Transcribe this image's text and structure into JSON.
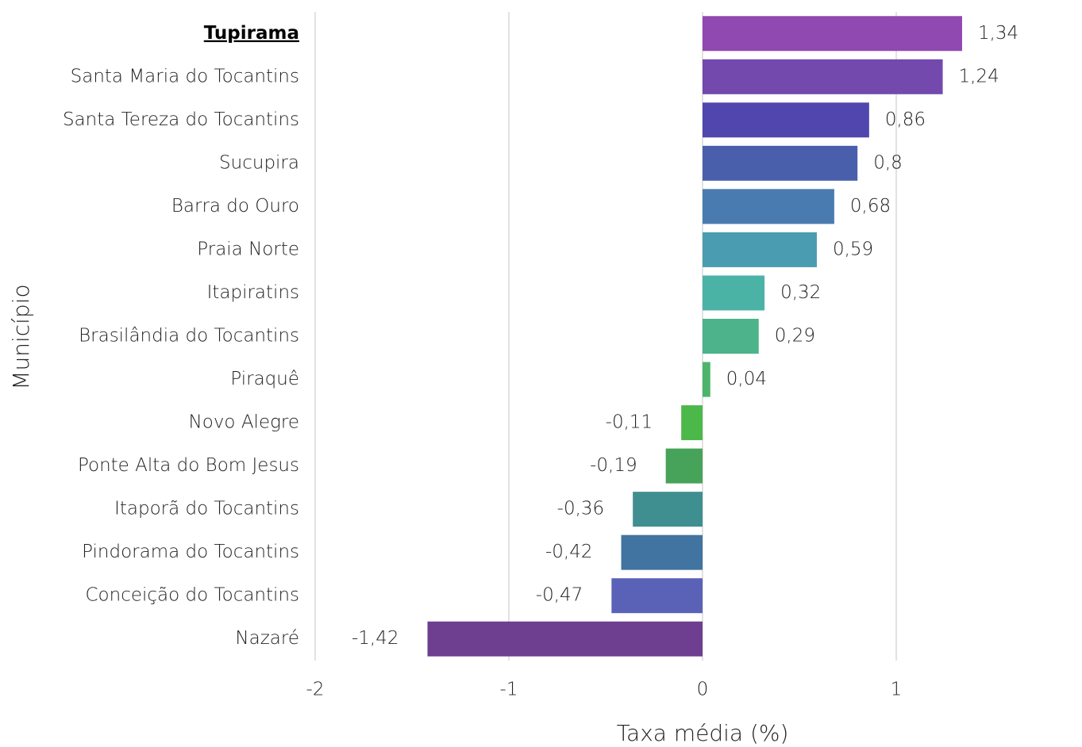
{
  "chart_data": {
    "type": "barh",
    "x_label": "Taxa média (%)",
    "y_label": "Município",
    "categories": [
      "Tupirama",
      "Santa Maria do Tocantins",
      "Santa Tereza do Tocantins",
      "Sucupira",
      "Barra do Ouro",
      "Praia Norte",
      "Itapiratins",
      "Brasilândia do Tocantins",
      "Piraquê",
      "Novo Alegre",
      "Ponte Alta do Bom Jesus",
      "Itaporã do Tocantins",
      "Pindorama do Tocantins",
      "Conceição do Tocantins",
      "Nazaré"
    ],
    "values": [
      1.34,
      1.24,
      0.86,
      0.8,
      0.68,
      0.59,
      0.32,
      0.29,
      0.04,
      -0.11,
      -0.19,
      -0.36,
      -0.42,
      -0.47,
      -1.42
    ],
    "value_labels": [
      "1,34",
      "1,24",
      "0,86",
      "0,8",
      "0,68",
      "0,59",
      "0,32",
      "0,29",
      "0,04",
      "-0,11",
      "-0,19",
      "-0,36",
      "-0,42",
      "-0,47",
      "-1,42"
    ],
    "colors": [
      "#9049b0",
      "#7349ae",
      "#5046ae",
      "#4a5fac",
      "#4a7bb0",
      "#4a9db0",
      "#4bb3a6",
      "#4db38a",
      "#4db56a",
      "#4cb84a",
      "#47a35a",
      "#3f8f91",
      "#4174a0",
      "#5a62b8",
      "#6e3e90"
    ],
    "highlighted_category": 0,
    "xlim": [
      -2,
      1.9
    ],
    "xticks": [
      -2,
      -1,
      0,
      1
    ],
    "grid": true
  }
}
